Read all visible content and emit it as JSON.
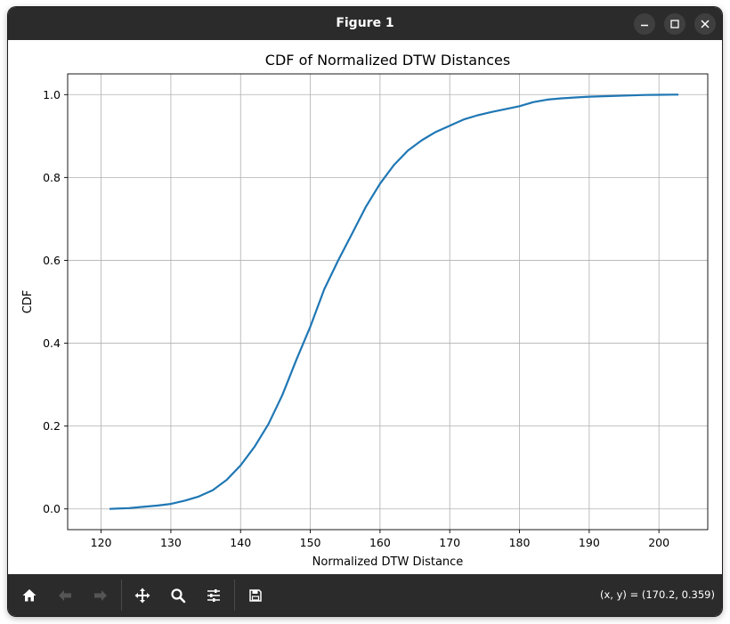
{
  "window": {
    "title": "Figure 1"
  },
  "toolbar": {
    "coords_readout": "(x, y) = (170.2, 0.359)",
    "icons": [
      "home-icon",
      "back-arrow-icon",
      "forward-arrow-icon",
      "pan-icon",
      "zoom-icon",
      "configure-subplots-icon",
      "save-icon"
    ]
  },
  "chart_data": {
    "type": "line",
    "title": "CDF of Normalized DTW Distances",
    "xlabel": "Normalized DTW Distance",
    "ylabel": "CDF",
    "xlim": [
      115.2,
      207.0
    ],
    "ylim": [
      -0.05,
      1.05
    ],
    "xticks": [
      120,
      130,
      140,
      150,
      160,
      170,
      180,
      190,
      200
    ],
    "yticks": [
      0.0,
      0.2,
      0.4,
      0.6,
      0.8,
      1.0
    ],
    "xtick_labels": [
      "120",
      "130",
      "140",
      "150",
      "160",
      "170",
      "180",
      "190",
      "200"
    ],
    "ytick_labels": [
      "0.0",
      "0.2",
      "0.4",
      "0.6",
      "0.8",
      "1.0"
    ],
    "grid": true,
    "line_color": "#1f77b4",
    "series": [
      {
        "x": [
          121.2,
          124,
          126,
          128,
          130,
          132,
          134,
          136,
          138,
          140,
          142,
          144,
          146,
          148,
          150,
          152,
          154,
          156,
          158,
          160,
          162,
          164,
          166,
          168,
          170,
          172,
          174,
          176,
          178,
          180,
          182,
          184,
          186,
          188,
          190,
          192,
          194,
          196,
          198,
          200,
          202,
          202.8
        ],
        "y": [
          0.0,
          0.002,
          0.005,
          0.008,
          0.012,
          0.02,
          0.03,
          0.045,
          0.07,
          0.105,
          0.15,
          0.205,
          0.275,
          0.36,
          0.44,
          0.53,
          0.6,
          0.665,
          0.73,
          0.785,
          0.83,
          0.865,
          0.89,
          0.91,
          0.925,
          0.94,
          0.95,
          0.958,
          0.965,
          0.972,
          0.982,
          0.988,
          0.991,
          0.993,
          0.995,
          0.996,
          0.997,
          0.998,
          0.999,
          0.9995,
          1.0,
          1.0
        ]
      }
    ]
  }
}
